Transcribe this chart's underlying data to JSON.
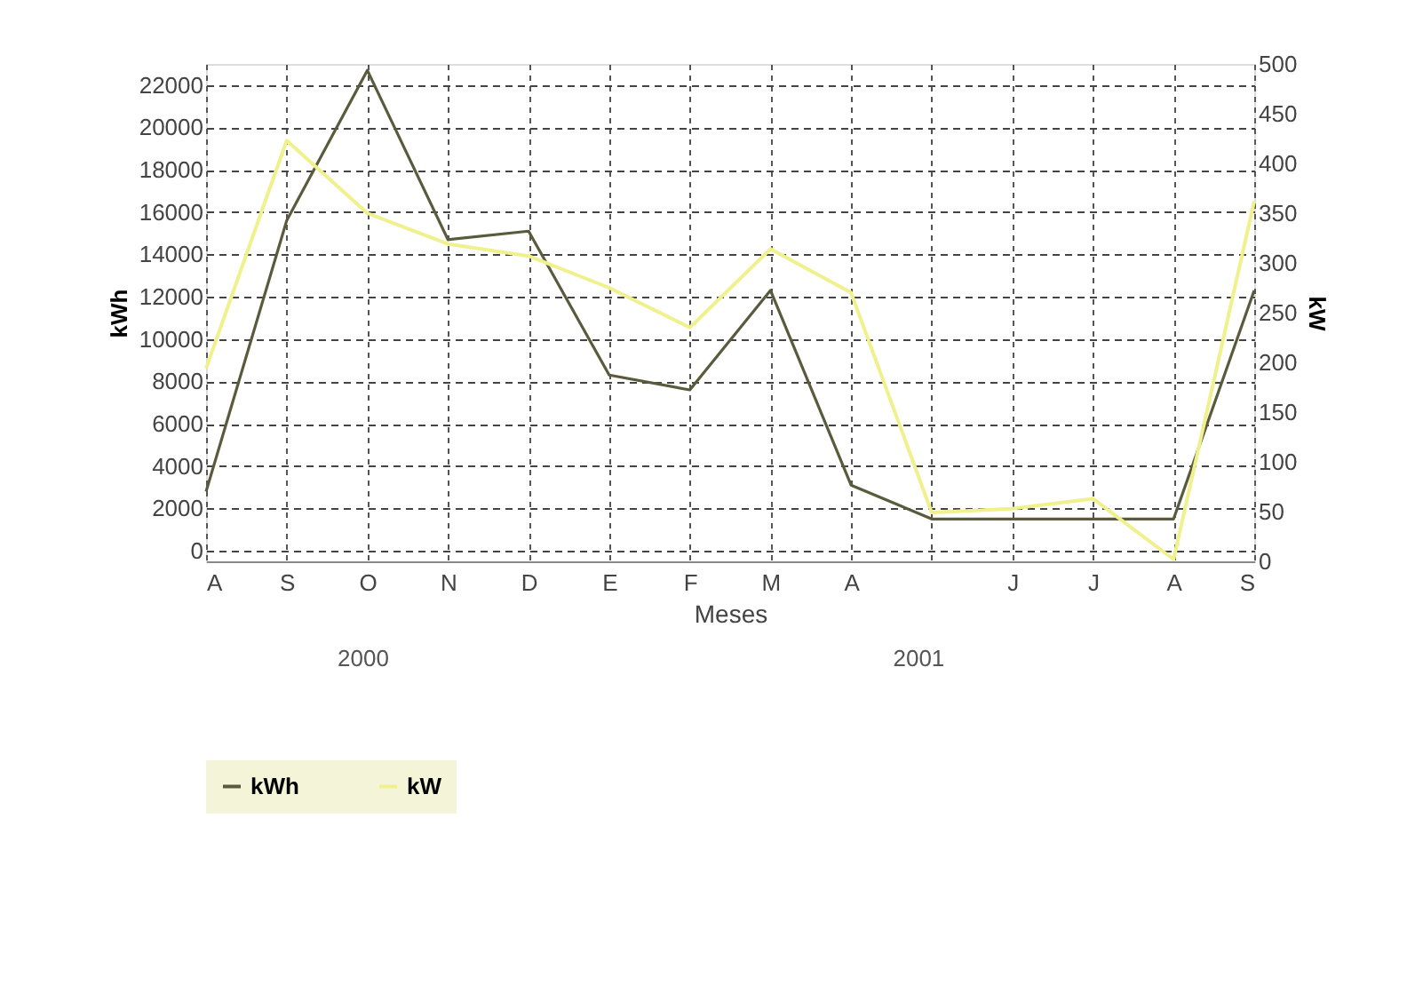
{
  "chart_data": {
    "type": "line",
    "xlabel": "Meses",
    "ylabel": "kWh",
    "y2label": "kW",
    "categories": [
      "A",
      "S",
      "O",
      "N",
      "D",
      "E",
      "F",
      "M",
      "A",
      null,
      "J",
      "J",
      "A",
      "S"
    ],
    "series": [
      {
        "name": "kWh",
        "color": "#5a5a3c",
        "values": [
          2800,
          15600,
          22700,
          14700,
          15100,
          8300,
          7600,
          12300,
          3100,
          1500,
          1500,
          1500,
          1500,
          12300
        ]
      },
      {
        "name": "kW",
        "color": "#f0f08c",
        "axis": "y2",
        "values": [
          194,
          423,
          350,
          319,
          307,
          275,
          235,
          314,
          270,
          49,
          53,
          63,
          2,
          362
        ]
      }
    ],
    "ylim": [
      -500,
      23000
    ],
    "yticks": [
      0,
      2000,
      4000,
      6000,
      8000,
      10000,
      12000,
      14000,
      16000,
      18000,
      20000,
      22000
    ],
    "y2lim": [
      0,
      500
    ],
    "y2ticks": [
      0,
      50,
      100,
      150,
      200,
      250,
      300,
      350,
      400,
      450,
      500
    ],
    "grid": true,
    "line_style": "solid",
    "marker": "none",
    "legend": "bottom",
    "annotations": [
      "2000",
      "2001"
    ]
  }
}
